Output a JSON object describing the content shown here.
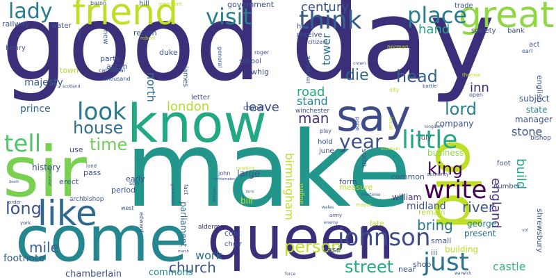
{
  "palette": [
    "#440154",
    "#482878",
    "#3e4989",
    "#31688e",
    "#26828e",
    "#1f9e89",
    "#35b779",
    "#6ece58",
    "#b5de2b",
    "#fde725"
  ],
  "words": [
    {
      "text": "good",
      "color": "#3b2f7a"
    },
    {
      "text": "day",
      "color": "#3b2f7a"
    },
    {
      "text": "make",
      "color": "#23968b"
    },
    {
      "text": "sir",
      "color": "#7ad151"
    },
    {
      "text": "come",
      "color": "#24868e"
    },
    {
      "text": "queen",
      "color": "#3b2f7a"
    },
    {
      "text": "know",
      "color": "#22a884"
    },
    {
      "text": "say",
      "color": "#3e4a89"
    },
    {
      "text": "great",
      "color": "#8fd744"
    },
    {
      "text": "friend",
      "color": "#bddf26"
    },
    {
      "text": "old",
      "color": "#bddf26"
    },
    {
      "text": "like",
      "color": "#31688e"
    },
    {
      "text": "johnson",
      "color": "#3e4a89"
    },
    {
      "text": "think",
      "color": "#355f8d"
    },
    {
      "text": "visit",
      "color": "#26818e"
    },
    {
      "text": "lady",
      "color": "#287c8e"
    },
    {
      "text": "place",
      "color": "#287c8e"
    },
    {
      "text": "look",
      "color": "#2a788e"
    },
    {
      "text": "tell",
      "color": "#52c569"
    },
    {
      "text": "little",
      "color": "#22a884"
    },
    {
      "text": "write",
      "color": "#440154"
    },
    {
      "text": "just",
      "color": "#2c718e"
    },
    {
      "text": "year",
      "color": "#3b528b"
    },
    {
      "text": "house",
      "color": "#2f6c8e"
    },
    {
      "text": "time",
      "color": "#6ece58"
    },
    {
      "text": "person",
      "color": "#bddf26"
    },
    {
      "text": "street",
      "color": "#25ab82"
    },
    {
      "text": "long",
      "color": "#3b528b"
    },
    {
      "text": "king",
      "color": "#440154"
    },
    {
      "text": "church",
      "color": "#3b528b"
    },
    {
      "text": "lord",
      "color": "#26818e"
    },
    {
      "text": "century",
      "color": "#3b528b"
    },
    {
      "text": "head",
      "color": "#355f8d"
    },
    {
      "text": "man",
      "color": "#46327e"
    },
    {
      "text": "london",
      "color": "#b5de2b"
    },
    {
      "text": "leave",
      "color": "#3e4a89"
    },
    {
      "text": "road",
      "color": "#27ad81"
    },
    {
      "text": "die",
      "color": "#31688e"
    },
    {
      "text": "hand",
      "color": "#22a884"
    },
    {
      "text": "mile",
      "color": "#355f8d"
    },
    {
      "text": "bring",
      "color": "#2a788e"
    },
    {
      "text": "river",
      "color": "#3b528b"
    },
    {
      "text": "work",
      "color": "#2c718e"
    },
    {
      "text": "stand",
      "color": "#25848e"
    },
    {
      "text": "inn",
      "color": "#3b2f7a"
    },
    {
      "text": "england",
      "color": "#46327e"
    },
    {
      "text": "castle",
      "color": "#35b779"
    },
    {
      "text": "stone",
      "color": "#3b528b"
    },
    {
      "text": "build",
      "color": "#22a884"
    },
    {
      "text": "birmingham",
      "color": "#bddf26"
    },
    {
      "text": "tower",
      "color": "#2c718e"
    },
    {
      "text": "north",
      "color": "#2f6c8e"
    },
    {
      "text": "prince",
      "color": "#31688e"
    },
    {
      "text": "majesty",
      "color": "#355f8d"
    },
    {
      "text": "history",
      "color": "#3e4a89"
    },
    {
      "text": "footnote",
      "color": "#355f8d"
    },
    {
      "text": "chamberlain",
      "color": "#3b528b"
    },
    {
      "text": "commons",
      "color": "#24868e"
    },
    {
      "text": "parliament",
      "color": "#2f6c8e"
    },
    {
      "text": "william",
      "color": "#46327e"
    },
    {
      "text": "midland",
      "color": "#3b528b"
    },
    {
      "text": "business",
      "color": "#8fd744"
    },
    {
      "text": "bill",
      "color": "#bddf26"
    },
    {
      "text": "company",
      "color": "#3b528b"
    },
    {
      "text": "manager",
      "color": "#3b528b"
    },
    {
      "text": "state",
      "color": "#24868e"
    },
    {
      "text": "subject",
      "color": "#3b528b"
    },
    {
      "text": "english",
      "color": "#3b528b"
    },
    {
      "text": "shrewsbury",
      "color": "#3b528b"
    },
    {
      "text": "george",
      "color": "#26818e"
    },
    {
      "text": "present",
      "color": "#2c718e"
    },
    {
      "text": "building",
      "color": "#bddf26"
    },
    {
      "text": "shop",
      "color": "#3b528b"
    },
    {
      "text": "case",
      "color": "#3b528b"
    },
    {
      "text": "near",
      "color": "#3b528b"
    },
    {
      "text": "late",
      "color": "#bddf26"
    },
    {
      "text": "small",
      "color": "#3b528b"
    },
    {
      "text": "iii",
      "color": "#3b528b"
    },
    {
      "text": "remain",
      "color": "#b5de2b"
    },
    {
      "text": "common",
      "color": "#3b528b"
    },
    {
      "text": "measure",
      "color": "#bddf26"
    },
    {
      "text": "form",
      "color": "#3b528b"
    },
    {
      "text": "large",
      "color": "#3b528b"
    },
    {
      "text": "cost",
      "color": "#3b528b"
    },
    {
      "text": "choir",
      "color": "#3b528b"
    },
    {
      "text": "aldermen",
      "color": "#3b2f7a"
    },
    {
      "text": "period",
      "color": "#3b528b"
    },
    {
      "text": "pass",
      "color": "#3b528b"
    },
    {
      "text": "early",
      "color": "#3b528b"
    },
    {
      "text": "erect",
      "color": "#3b528b"
    },
    {
      "text": "archbishop",
      "color": "#3b528b"
    },
    {
      "text": "use",
      "color": "#3b528b"
    },
    {
      "text": "town",
      "color": "#b5de2b"
    },
    {
      "text": "party",
      "color": "#3b528b"
    },
    {
      "text": "aston",
      "color": "#3b528b"
    },
    {
      "text": "duke",
      "color": "#3b528b"
    },
    {
      "text": "james",
      "color": "#3b528b"
    },
    {
      "text": "whig",
      "color": "#3b528b"
    },
    {
      "text": "school",
      "color": "#3b528b"
    },
    {
      "text": "letter",
      "color": "#3b528b"
    },
    {
      "text": "chapel",
      "color": "#3b528b"
    },
    {
      "text": "winchester",
      "color": "#3b528b"
    },
    {
      "text": "railway",
      "color": "#3b528b"
    },
    {
      "text": "water",
      "color": "#3b528b"
    },
    {
      "text": "henry",
      "color": "#3b528b"
    },
    {
      "text": "new",
      "color": "#3b528b"
    },
    {
      "text": "return",
      "color": "#3b528b"
    },
    {
      "text": "cathedral",
      "color": "#3b528b"
    },
    {
      "text": "thousand",
      "color": "#3b528b"
    },
    {
      "text": "government",
      "color": "#3b528b"
    },
    {
      "text": "hall",
      "color": "#3b528b"
    },
    {
      "text": "receive",
      "color": "#3b528b"
    },
    {
      "text": "trade",
      "color": "#3b528b"
    },
    {
      "text": "society",
      "color": "#3b528b"
    },
    {
      "text": "bank",
      "color": "#3b528b"
    },
    {
      "text": "act",
      "color": "#3b528b"
    },
    {
      "text": "earl",
      "color": "#3b528b"
    },
    {
      "text": "hill",
      "color": "#3b528b"
    },
    {
      "text": "baron",
      "color": "#3b528b"
    },
    {
      "text": "merchant",
      "color": "#bddf26"
    },
    {
      "text": "robert",
      "color": "#bddf26"
    },
    {
      "text": "general",
      "color": "#3b528b"
    },
    {
      "text": "roger",
      "color": "#3b528b"
    },
    {
      "text": "important",
      "color": "#3b528b"
    },
    {
      "text": "citizen",
      "color": "#3b528b"
    },
    {
      "text": "norman",
      "color": "#bddf26"
    },
    {
      "text": "crown",
      "color": "#3b528b"
    },
    {
      "text": "city",
      "color": "#bddf26"
    },
    {
      "text": "battle",
      "color": "#3b528b"
    },
    {
      "text": "thomas",
      "color": "#bddf26"
    },
    {
      "text": "open",
      "color": "#3b528b"
    },
    {
      "text": "local",
      "color": "#bddf26"
    },
    {
      "text": "pope",
      "color": "#3b528b"
    },
    {
      "text": "play",
      "color": "#3b528b"
    },
    {
      "text": "hold",
      "color": "#3b528b"
    },
    {
      "text": "soon",
      "color": "#3b528b"
    },
    {
      "text": "june",
      "color": "#3b528b"
    },
    {
      "text": "july",
      "color": "#3b528b"
    },
    {
      "text": "kingdom",
      "color": "#3b528b"
    },
    {
      "text": "elizabeth",
      "color": "#bddf26"
    },
    {
      "text": "bishop",
      "color": "#3b528b"
    },
    {
      "text": "foot",
      "color": "#3b528b"
    },
    {
      "text": "authority",
      "color": "#3b528b"
    },
    {
      "text": "number",
      "color": "#3b528b"
    },
    {
      "text": "august",
      "color": "#bddf26"
    },
    {
      "text": "john",
      "color": "#3b528b"
    },
    {
      "text": "hereford",
      "color": "#bddf26"
    },
    {
      "text": "northampton",
      "color": "#3b528b"
    },
    {
      "text": "mortimer",
      "color": "#3b528b"
    },
    {
      "text": "wales",
      "color": "#3b528b"
    },
    {
      "text": "army",
      "color": "#3b528b"
    },
    {
      "text": "mayor",
      "color": "#bddf26"
    },
    {
      "text": "enemy",
      "color": "#3b528b"
    },
    {
      "text": "marriage",
      "color": "#3b528b"
    },
    {
      "text": "bury",
      "color": "#3b528b"
    },
    {
      "text": "gloucester",
      "color": "#3b528b"
    },
    {
      "text": "lancaster",
      "color": "#3b528b"
    },
    {
      "text": "land",
      "color": "#3b528b"
    },
    {
      "text": "son",
      "color": "#3b528b"
    },
    {
      "text": "west",
      "color": "#3b528b"
    },
    {
      "text": "edward",
      "color": "#3b528b"
    },
    {
      "text": "fact",
      "color": "#3b528b"
    },
    {
      "text": "order",
      "color": "#3b528b"
    },
    {
      "text": "york",
      "color": "#3b528b"
    },
    {
      "text": "death",
      "color": "#3b528b"
    },
    {
      "text": "force",
      "color": "#3b528b"
    },
    {
      "text": "warwick",
      "color": "#3b528b"
    },
    {
      "text": "marsh",
      "color": "#3b528b"
    },
    {
      "text": "scotland",
      "color": "#3b528b"
    },
    {
      "text": "dudley",
      "color": "#3b528b"
    },
    {
      "text": "vol",
      "color": "#3b528b"
    }
  ]
}
